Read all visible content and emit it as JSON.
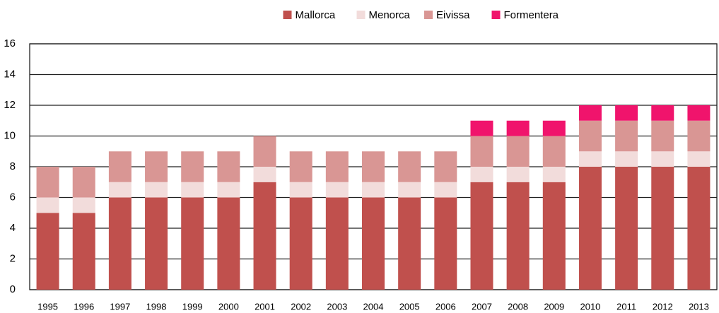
{
  "chart_data": {
    "type": "stacked_bar",
    "categories": [
      "1995",
      "1996",
      "1997",
      "1998",
      "1999",
      "2000",
      "2001",
      "2002",
      "2003",
      "2004",
      "2005",
      "2006",
      "2007",
      "2008",
      "2009",
      "2010",
      "2011",
      "2012",
      "2013"
    ],
    "series": [
      {
        "name": "Mallorca",
        "color": "#c0504d",
        "values": [
          5,
          5,
          6,
          6,
          6,
          6,
          7,
          6,
          6,
          6,
          6,
          6,
          7,
          7,
          7,
          8,
          8,
          8,
          8
        ]
      },
      {
        "name": "Menorca",
        "color": "#f2dcdb",
        "values": [
          1,
          1,
          1,
          1,
          1,
          1,
          1,
          1,
          1,
          1,
          1,
          1,
          1,
          1,
          1,
          1,
          1,
          1,
          1
        ]
      },
      {
        "name": "Eivissa",
        "color": "#d99694",
        "values": [
          2,
          2,
          2,
          2,
          2,
          2,
          2,
          2,
          2,
          2,
          2,
          2,
          2,
          2,
          2,
          2,
          2,
          2,
          2
        ]
      },
      {
        "name": "Formentera",
        "color": "#f0146c",
        "values": [
          0,
          0,
          0,
          0,
          0,
          0,
          0,
          0,
          0,
          0,
          0,
          0,
          1,
          1,
          1,
          1,
          1,
          1,
          1
        ]
      }
    ],
    "ylim": [
      0,
      16
    ],
    "yticks": [
      0,
      2,
      4,
      6,
      8,
      10,
      12,
      14,
      16
    ],
    "grid": true,
    "legend": "top"
  }
}
